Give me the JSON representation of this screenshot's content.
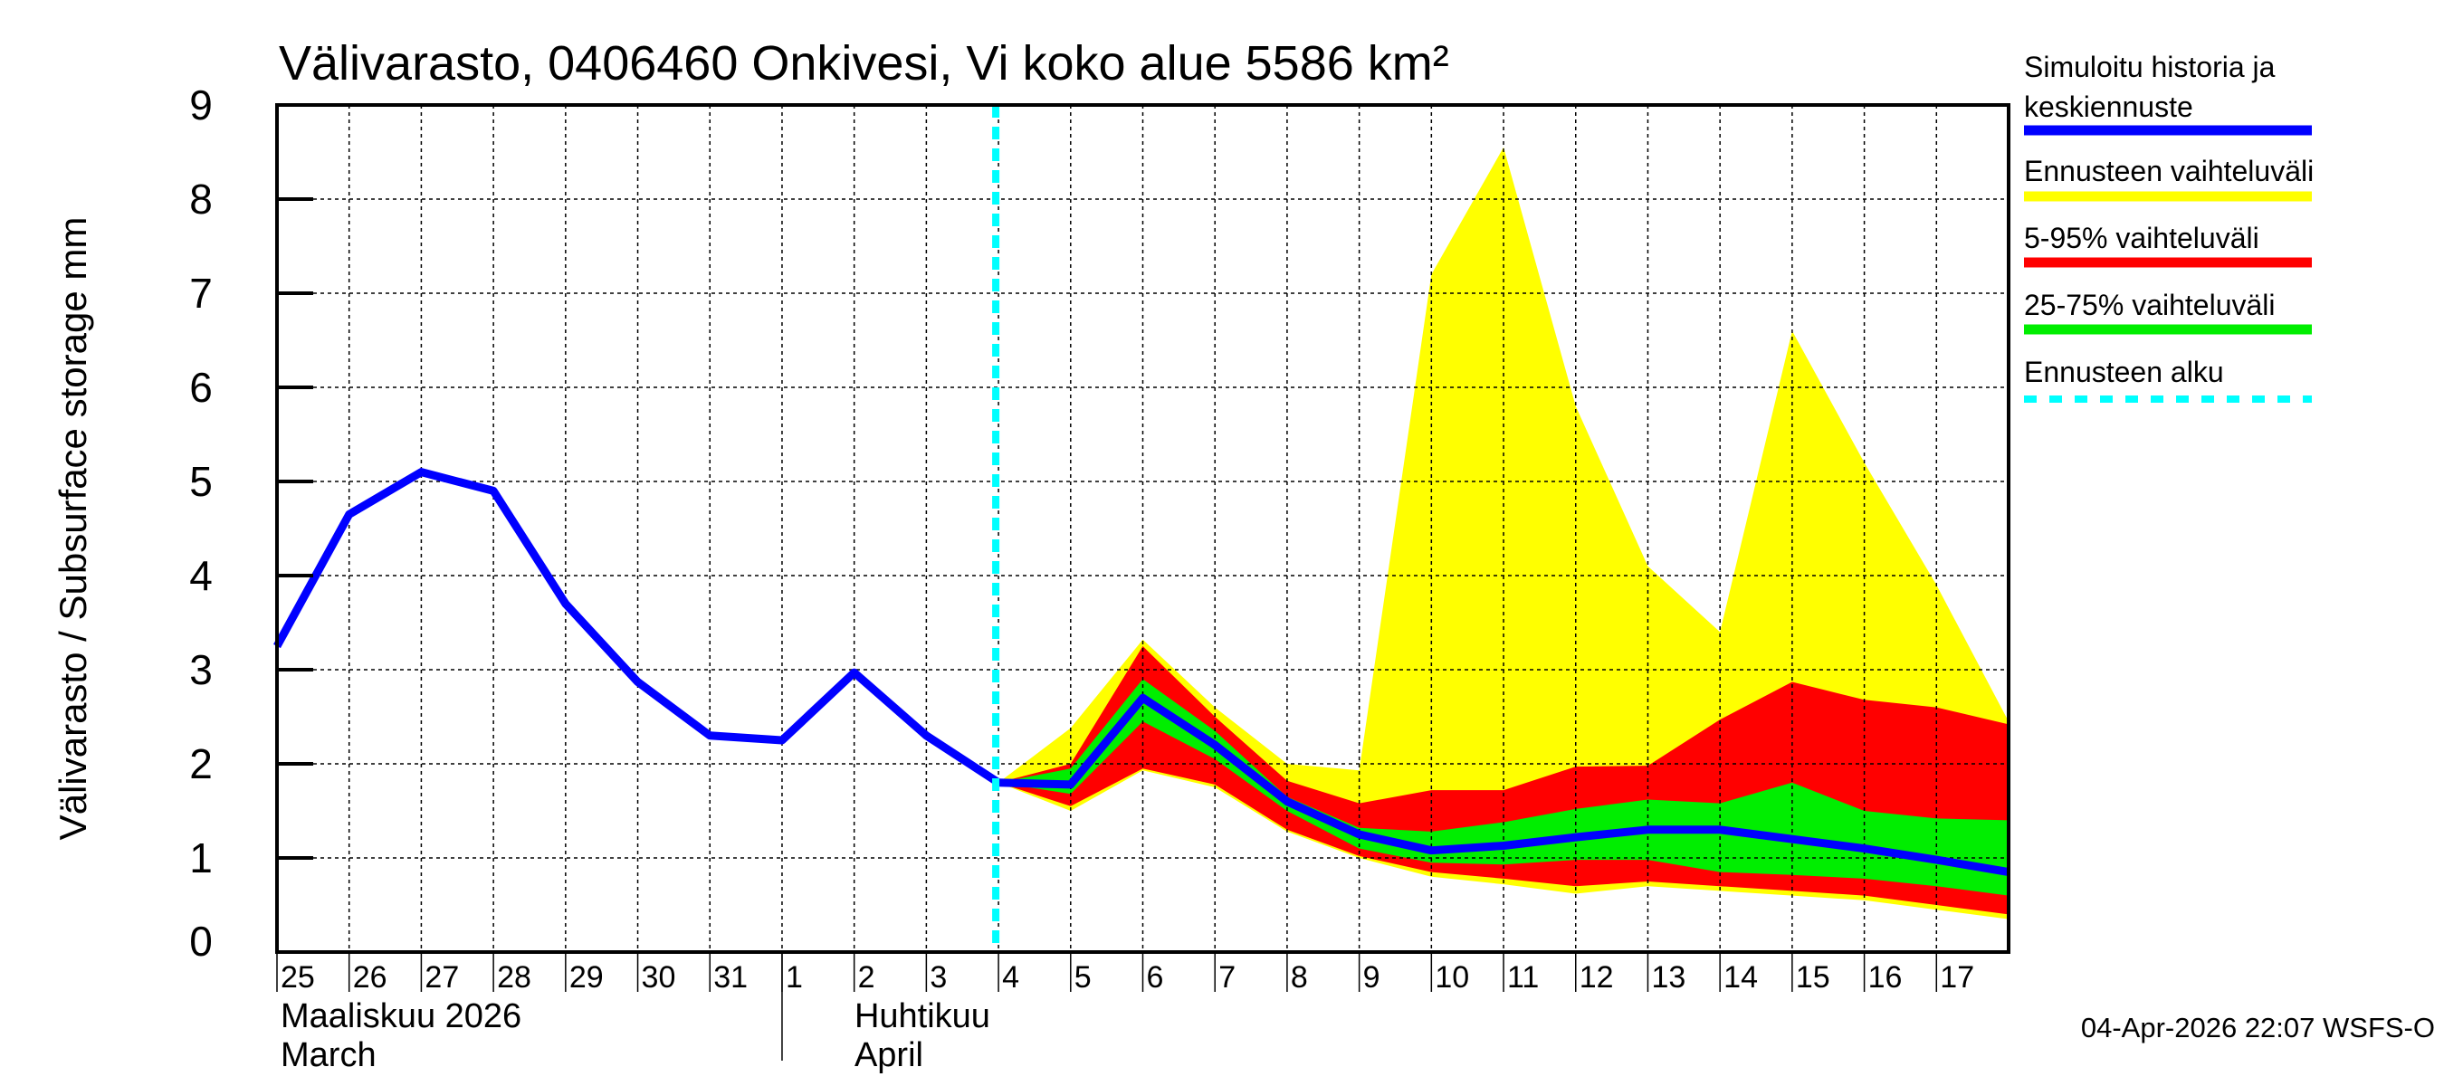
{
  "chart_data": {
    "type": "area",
    "title": "Välivarasto, 0406460 Onkivesi, Vi koko alue 5586 km²",
    "ylabel": "Välivarasto / Subsurface storage  mm",
    "xlabel": "",
    "ylim": [
      0,
      9
    ],
    "yticks": [
      "0",
      "1",
      "2",
      "3",
      "4",
      "5",
      "6",
      "7",
      "8",
      "9"
    ],
    "xlim": [
      "2026-03-25",
      "2026-04-18"
    ],
    "grid": true,
    "legend_placement": "right",
    "day_labels": [
      "25",
      "26",
      "27",
      "28",
      "29",
      "30",
      "31",
      "1",
      "2",
      "3",
      "4",
      "5",
      "6",
      "7",
      "8",
      "9",
      "10",
      "11",
      "12",
      "13",
      "14",
      "15",
      "16",
      "17"
    ],
    "month_labels": [
      {
        "fi": "Maaliskuu 2026",
        "en": "March",
        "start": "2026-03-25"
      },
      {
        "fi": "Huhtikuu",
        "en": "April",
        "start": "2026-04-01"
      }
    ],
    "forecast_start": "2026-04-04",
    "history_x": [
      "2026-03-25",
      "2026-03-26",
      "2026-03-27",
      "2026-03-28",
      "2026-03-29",
      "2026-03-30",
      "2026-03-31",
      "2026-04-01",
      "2026-04-02",
      "2026-04-03",
      "2026-04-04"
    ],
    "history_y": [
      3.25,
      4.65,
      5.1,
      4.9,
      3.7,
      2.87,
      2.3,
      2.25,
      2.97,
      2.3,
      1.8
    ],
    "forecast_x": [
      "2026-04-04",
      "2026-04-05",
      "2026-04-06",
      "2026-04-07",
      "2026-04-08",
      "2026-04-09",
      "2026-04-10",
      "2026-04-11",
      "2026-04-12",
      "2026-04-13",
      "2026-04-14",
      "2026-04-15",
      "2026-04-16",
      "2026-04-17",
      "2026-04-18"
    ],
    "series": [
      {
        "name": "Ennusteen vaihteluväli",
        "kind": "band",
        "color": "#ffff00",
        "upper": [
          1.8,
          2.38,
          3.32,
          2.6,
          2.0,
          1.93,
          7.2,
          8.55,
          5.8,
          4.1,
          3.4,
          6.6,
          5.2,
          3.9,
          2.45
        ],
        "lower": [
          1.8,
          1.5,
          1.93,
          1.75,
          1.28,
          1.0,
          0.8,
          0.72,
          0.62,
          0.7,
          0.65,
          0.6,
          0.55,
          0.45,
          0.35
        ]
      },
      {
        "name": "5-95% vaihteluväli",
        "kind": "band",
        "color": "#ff0000",
        "upper": [
          1.8,
          2.0,
          3.25,
          2.5,
          1.82,
          1.58,
          1.72,
          1.72,
          1.97,
          1.98,
          2.47,
          2.87,
          2.68,
          2.6,
          2.42
        ],
        "lower": [
          1.8,
          1.55,
          1.95,
          1.78,
          1.3,
          1.02,
          0.85,
          0.78,
          0.7,
          0.75,
          0.7,
          0.65,
          0.6,
          0.5,
          0.4
        ]
      },
      {
        "name": "25-75% vaihteluväli",
        "kind": "band",
        "color": "#00ee00",
        "upper": [
          1.8,
          1.95,
          2.9,
          2.35,
          1.65,
          1.32,
          1.28,
          1.38,
          1.52,
          1.62,
          1.58,
          1.8,
          1.5,
          1.42,
          1.4
        ],
        "lower": [
          1.8,
          1.68,
          2.45,
          2.05,
          1.5,
          1.1,
          0.95,
          0.93,
          0.98,
          0.98,
          0.85,
          0.82,
          0.78,
          0.7,
          0.6
        ]
      },
      {
        "name": "Simuloitu historia ja keskiennuste",
        "kind": "line",
        "color": "#0000ff",
        "forecast_y": [
          1.8,
          1.78,
          2.7,
          2.2,
          1.6,
          1.25,
          1.08,
          1.13,
          1.22,
          1.3,
          1.3,
          1.2,
          1.1,
          0.98,
          0.85
        ]
      },
      {
        "name": "Ennusteen alku",
        "kind": "vline",
        "color": "#00ffff"
      }
    ],
    "legend": [
      {
        "line1": "Simuloitu historia ja",
        "line2": "keskiennuste",
        "color": "#0000ff",
        "style": "solid"
      },
      {
        "line1": "Ennusteen vaihteluväli",
        "color": "#ffff00",
        "style": "solid"
      },
      {
        "line1": "5-95% vaihteluväli",
        "color": "#ff0000",
        "style": "solid"
      },
      {
        "line1": "25-75% vaihteluväli",
        "color": "#00ee00",
        "style": "solid"
      },
      {
        "line1": "Ennusteen alku",
        "color": "#00ffff",
        "style": "dashed"
      }
    ],
    "footer": "04-Apr-2026 22:07 WSFS-O"
  }
}
